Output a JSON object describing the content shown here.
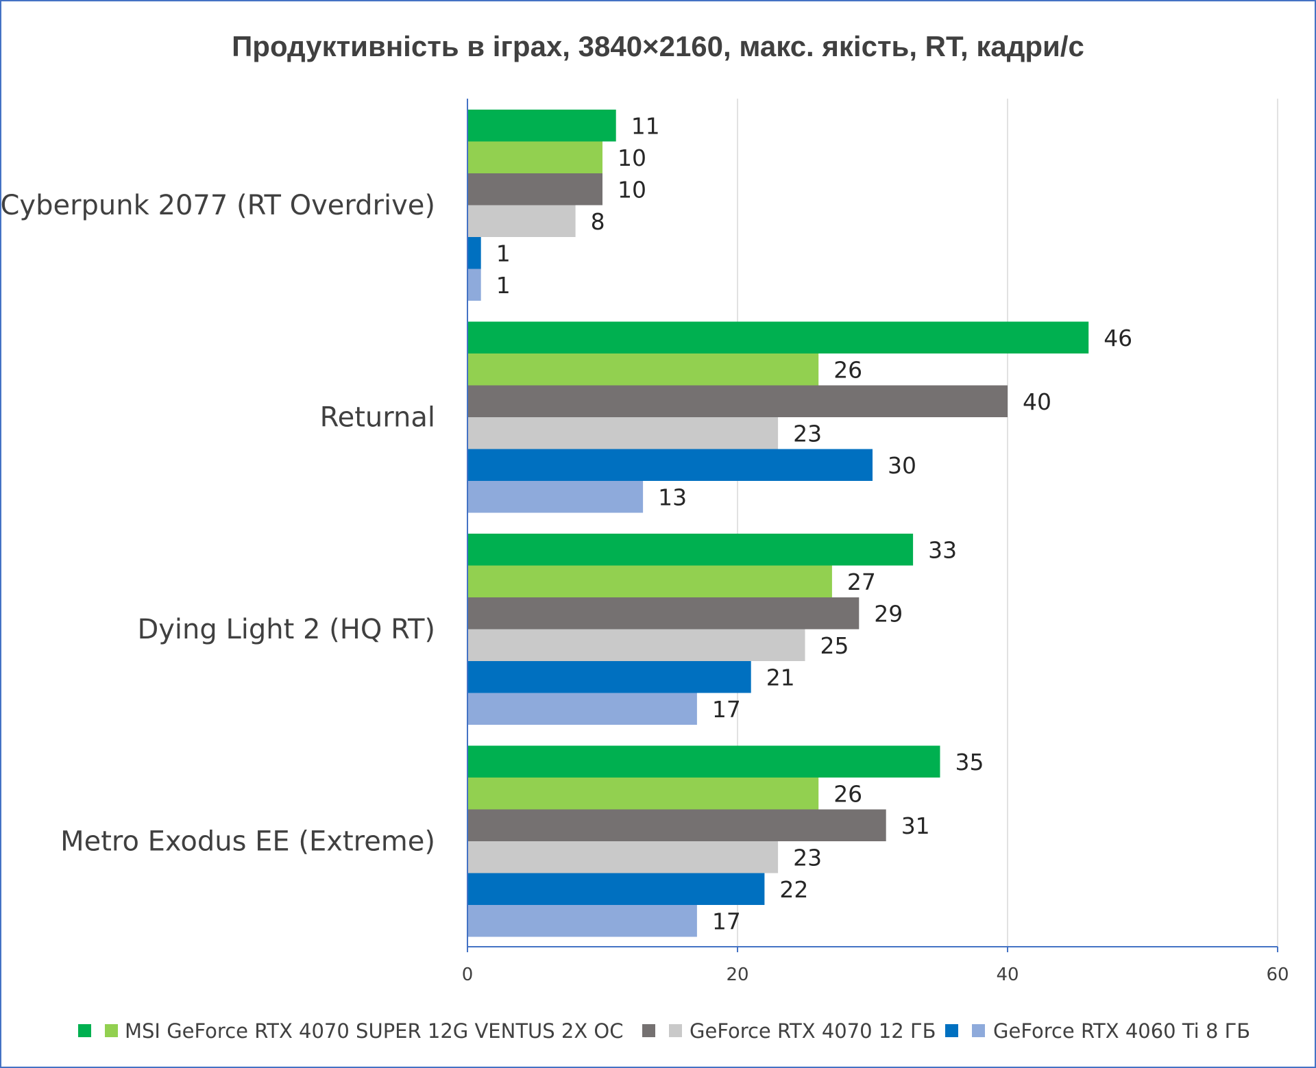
{
  "chart_data": {
    "type": "bar",
    "orientation": "horizontal",
    "title": "Продуктивність в іграх, 3840×2160, макс. якість, RT, кадри/с",
    "categories": [
      "Cyberpunk 2077 (RT Overdrive)",
      "Returnal",
      "Dying Light 2 (HQ RT)",
      "Metro Exodus EE (Extreme)"
    ],
    "series": [
      {
        "color": "#00b050",
        "values": [
          11,
          46,
          33,
          35
        ]
      },
      {
        "color": "#92d050",
        "values": [
          10,
          26,
          27,
          26
        ]
      },
      {
        "color": "#757171",
        "values": [
          10,
          40,
          29,
          31
        ]
      },
      {
        "color": "#c9c9c9",
        "values": [
          8,
          23,
          25,
          23
        ]
      },
      {
        "color": "#0070c0",
        "values": [
          1,
          30,
          21,
          22
        ]
      },
      {
        "color": "#8eaadb",
        "values": [
          1,
          13,
          17,
          17
        ]
      }
    ],
    "xlim": [
      0,
      60
    ],
    "xticks": [
      0,
      20,
      40,
      60
    ],
    "grid": true,
    "legend_position": "bottom",
    "legend_labels": [
      {
        "after_series": 1,
        "text": "MSI GeForce RTX 4070 SUPER 12G VENTUS 2X OC"
      },
      {
        "after_series": 3,
        "text": "GeForce RTX 4070 12 ГБ"
      },
      {
        "after_series": 5,
        "text": "GeForce RTX 4060 Ti 8 ГБ"
      }
    ]
  }
}
